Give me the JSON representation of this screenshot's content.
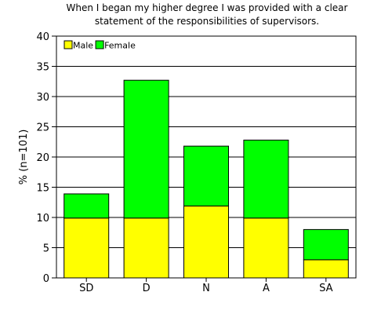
{
  "chart_data": {
    "type": "bar",
    "stacked": true,
    "title": "When I began my higher degree I was provided with a clear statement of the responsibilities of supervisors.",
    "title_lines": [
      "When I began my higher degree I was provided with a clear",
      "statement of the responsibilities of supervisors."
    ],
    "xlabel": "",
    "ylabel": "% (n=101)",
    "categories": [
      "SD",
      "D",
      "N",
      "A",
      "SA"
    ],
    "series": [
      {
        "name": "Male",
        "color": "#ffff00",
        "values": [
          9.9,
          9.9,
          11.9,
          9.9,
          3.0
        ]
      },
      {
        "name": "Female",
        "color": "#00ff00",
        "values": [
          4.0,
          22.8,
          9.9,
          12.9,
          5.0
        ]
      }
    ],
    "ylim": [
      0,
      40
    ],
    "yticks": [
      0,
      5,
      10,
      15,
      20,
      25,
      30,
      35,
      40
    ],
    "grid": true,
    "legend_placement": "top-left"
  }
}
